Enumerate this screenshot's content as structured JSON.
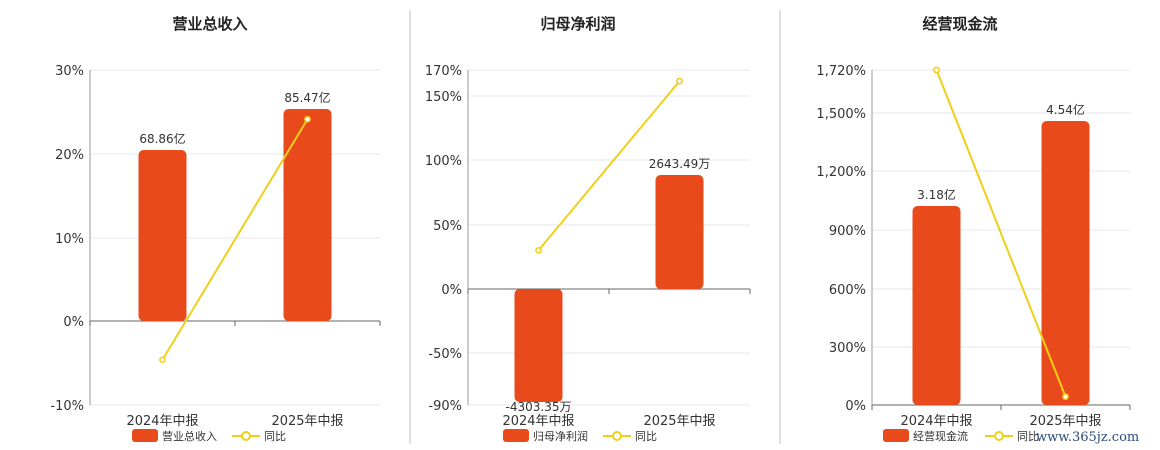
{
  "colors": {
    "bar": "#e84a1c",
    "line": "#f0cf1a",
    "marker_fill": "#ffffff"
  },
  "watermark": "www.365jz.com",
  "chart_data": [
    {
      "type": "bar",
      "title": "营业总收入",
      "categories": [
        "2024年中报",
        "2025年中报"
      ],
      "series": [
        {
          "name": "营业总收入",
          "type": "bar",
          "axis": "hidden",
          "values": [
            68.86,
            85.47
          ],
          "labels": [
            "68.86亿",
            "85.47亿"
          ]
        },
        {
          "name": "同比",
          "type": "line",
          "axis": "left",
          "values": [
            -4.6,
            24.12
          ]
        }
      ],
      "ylim": [
        -10,
        30
      ],
      "yticks": [
        "30%",
        "20%",
        "10%",
        "0%",
        "-10%"
      ],
      "legend": "bottom",
      "grid": true
    },
    {
      "type": "bar",
      "title": "归母净利润",
      "categories": [
        "2024年中报",
        "2025年中报"
      ],
      "series": [
        {
          "name": "归母净利润",
          "type": "bar",
          "axis": "hidden",
          "values": [
            -4303.35,
            2643.49
          ],
          "labels": [
            "-4303.35万",
            "2643.49万"
          ]
        },
        {
          "name": "同比",
          "type": "line",
          "axis": "left",
          "values": [
            30.0,
            161.4
          ]
        }
      ],
      "ylim": [
        -90,
        170
      ],
      "yticks": [
        "170%",
        "150%",
        "100%",
        "50%",
        "0%",
        "-50%",
        "-90%"
      ],
      "legend": "bottom",
      "grid": true
    },
    {
      "type": "bar",
      "title": "经营现金流",
      "categories": [
        "2024年中报",
        "2025年中报"
      ],
      "series": [
        {
          "name": "经营现金流",
          "type": "bar",
          "axis": "hidden",
          "values": [
            3.18,
            4.54
          ],
          "labels": [
            "3.18亿",
            "4.54亿"
          ]
        },
        {
          "name": "同比",
          "type": "line",
          "axis": "left",
          "values": [
            1720,
            42.8
          ]
        }
      ],
      "ylim": [
        0,
        1720
      ],
      "yticks": [
        "1,720%",
        "1,500%",
        "1,200%",
        "900%",
        "600%",
        "300%",
        "0%"
      ],
      "legend": "bottom",
      "grid": true
    }
  ]
}
